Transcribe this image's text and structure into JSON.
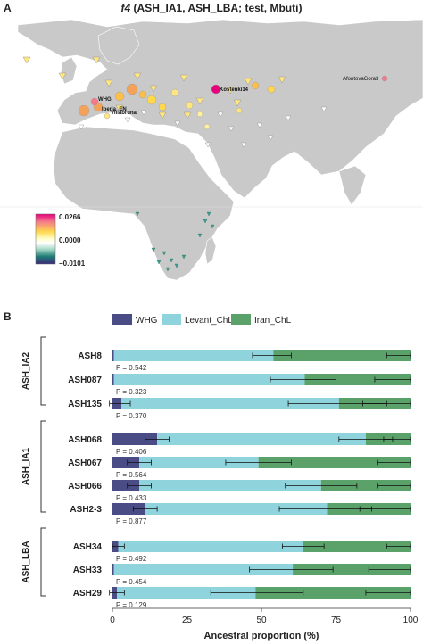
{
  "panel_a": {
    "label": "A",
    "title_f": "f4",
    "title_rest": "(ASH_IA1, ASH_LBA; test, Mbuti)",
    "scale": {
      "max_label": "0.0266",
      "mid_label": "0.0000",
      "min_label": "−0.0101",
      "colors": [
        "#e6007e",
        "#f47a8a",
        "#ffd84d",
        "#ffffcc",
        "#ffffff",
        "#a8dbc9",
        "#3aa08f",
        "#1f7c74",
        "#3b2a7a"
      ]
    },
    "sample_labels": [
      {
        "text": "AfontovaGora3",
        "key": "afontova"
      },
      {
        "text": "Kostenki14",
        "key": "kostenki"
      },
      {
        "text": "WHG",
        "key": "whg"
      },
      {
        "text": "Villabruna",
        "key": "villabruna"
      },
      {
        "text": "Iberia_EN",
        "key": "iberia"
      }
    ]
  },
  "chart_data": {
    "type": "bar",
    "orientation": "horizontal",
    "stacked": true,
    "panel_label": "B",
    "series": [
      {
        "name": "WHG",
        "color": "#4a4c86"
      },
      {
        "name": "Levant_ChL",
        "color": "#8fd3dc"
      },
      {
        "name": "Iran_ChL",
        "color": "#5aa26a"
      }
    ],
    "xlabel": "Ancestral proportion (%)",
    "xlim": [
      0,
      100
    ],
    "xticks": [
      "0",
      "25",
      "50",
      "75",
      "100"
    ],
    "groups": [
      {
        "name": "ASH_IA2",
        "samples": [
          {
            "name": "ASH8",
            "whg": 0.5,
            "levant": 53.5,
            "iran": 46,
            "p": "P = 0.542",
            "e_whg": [
              0,
              0
            ],
            "e_lev": [
              47,
              60
            ],
            "e_iran": [
              92,
              100
            ]
          },
          {
            "name": "ASH087",
            "whg": 0.5,
            "levant": 64,
            "iran": 35.5,
            "p": "P = 0.323",
            "e_whg": [
              0,
              0
            ],
            "e_lev": [
              53,
              75
            ],
            "e_iran": [
              88,
              100
            ]
          },
          {
            "name": "ASH135",
            "whg": 3,
            "levant": 73,
            "iran": 24,
            "p": "P = 0.370",
            "e_whg": [
              -1,
              6
            ],
            "e_lev": [
              59,
              92
            ],
            "e_iran": [
              84,
              100
            ]
          }
        ]
      },
      {
        "name": "ASH_IA1",
        "samples": [
          {
            "name": "ASH068",
            "whg": 15,
            "levant": 70,
            "iran": 15,
            "p": "P = 0.406",
            "e_whg": [
              11,
              19
            ],
            "e_lev": [
              76,
              94
            ],
            "e_iran": [
              91,
              100
            ]
          },
          {
            "name": "ASH067",
            "whg": 9,
            "levant": 40,
            "iran": 51,
            "p": "P = 0.564",
            "e_whg": [
              5,
              13
            ],
            "e_lev": [
              38,
              60
            ],
            "e_iran": [
              89,
              100
            ]
          },
          {
            "name": "ASH066",
            "whg": 9,
            "levant": 61,
            "iran": 30,
            "p": "P = 0.433",
            "e_whg": [
              5,
              13
            ],
            "e_lev": [
              58,
              82
            ],
            "e_iran": [
              89,
              100
            ]
          },
          {
            "name": "ASH2-3",
            "whg": 11,
            "levant": 61,
            "iran": 28,
            "p": "P = 0.877",
            "e_whg": [
              7,
              15
            ],
            "e_lev": [
              56,
              87
            ],
            "e_iran": [
              83,
              100
            ]
          }
        ]
      },
      {
        "name": "ASH_LBA",
        "samples": [
          {
            "name": "ASH34",
            "whg": 2,
            "levant": 62,
            "iran": 36,
            "p": "P = 0.492",
            "e_whg": [
              0,
              4
            ],
            "e_lev": [
              57,
              71
            ],
            "e_iran": [
              92,
              100
            ]
          },
          {
            "name": "ASH33",
            "whg": 0.5,
            "levant": 60,
            "iran": 39.5,
            "p": "P = 0.454",
            "e_whg": [
              0,
              0
            ],
            "e_lev": [
              46,
              74
            ],
            "e_iran": [
              86,
              100
            ]
          },
          {
            "name": "ASH29",
            "whg": 1.5,
            "levant": 46.5,
            "iran": 52,
            "p": "P = 0.129",
            "e_whg": [
              -1,
              4
            ],
            "e_lev": [
              33,
              64
            ],
            "e_iran": [
              85,
              100
            ]
          }
        ]
      }
    ]
  }
}
